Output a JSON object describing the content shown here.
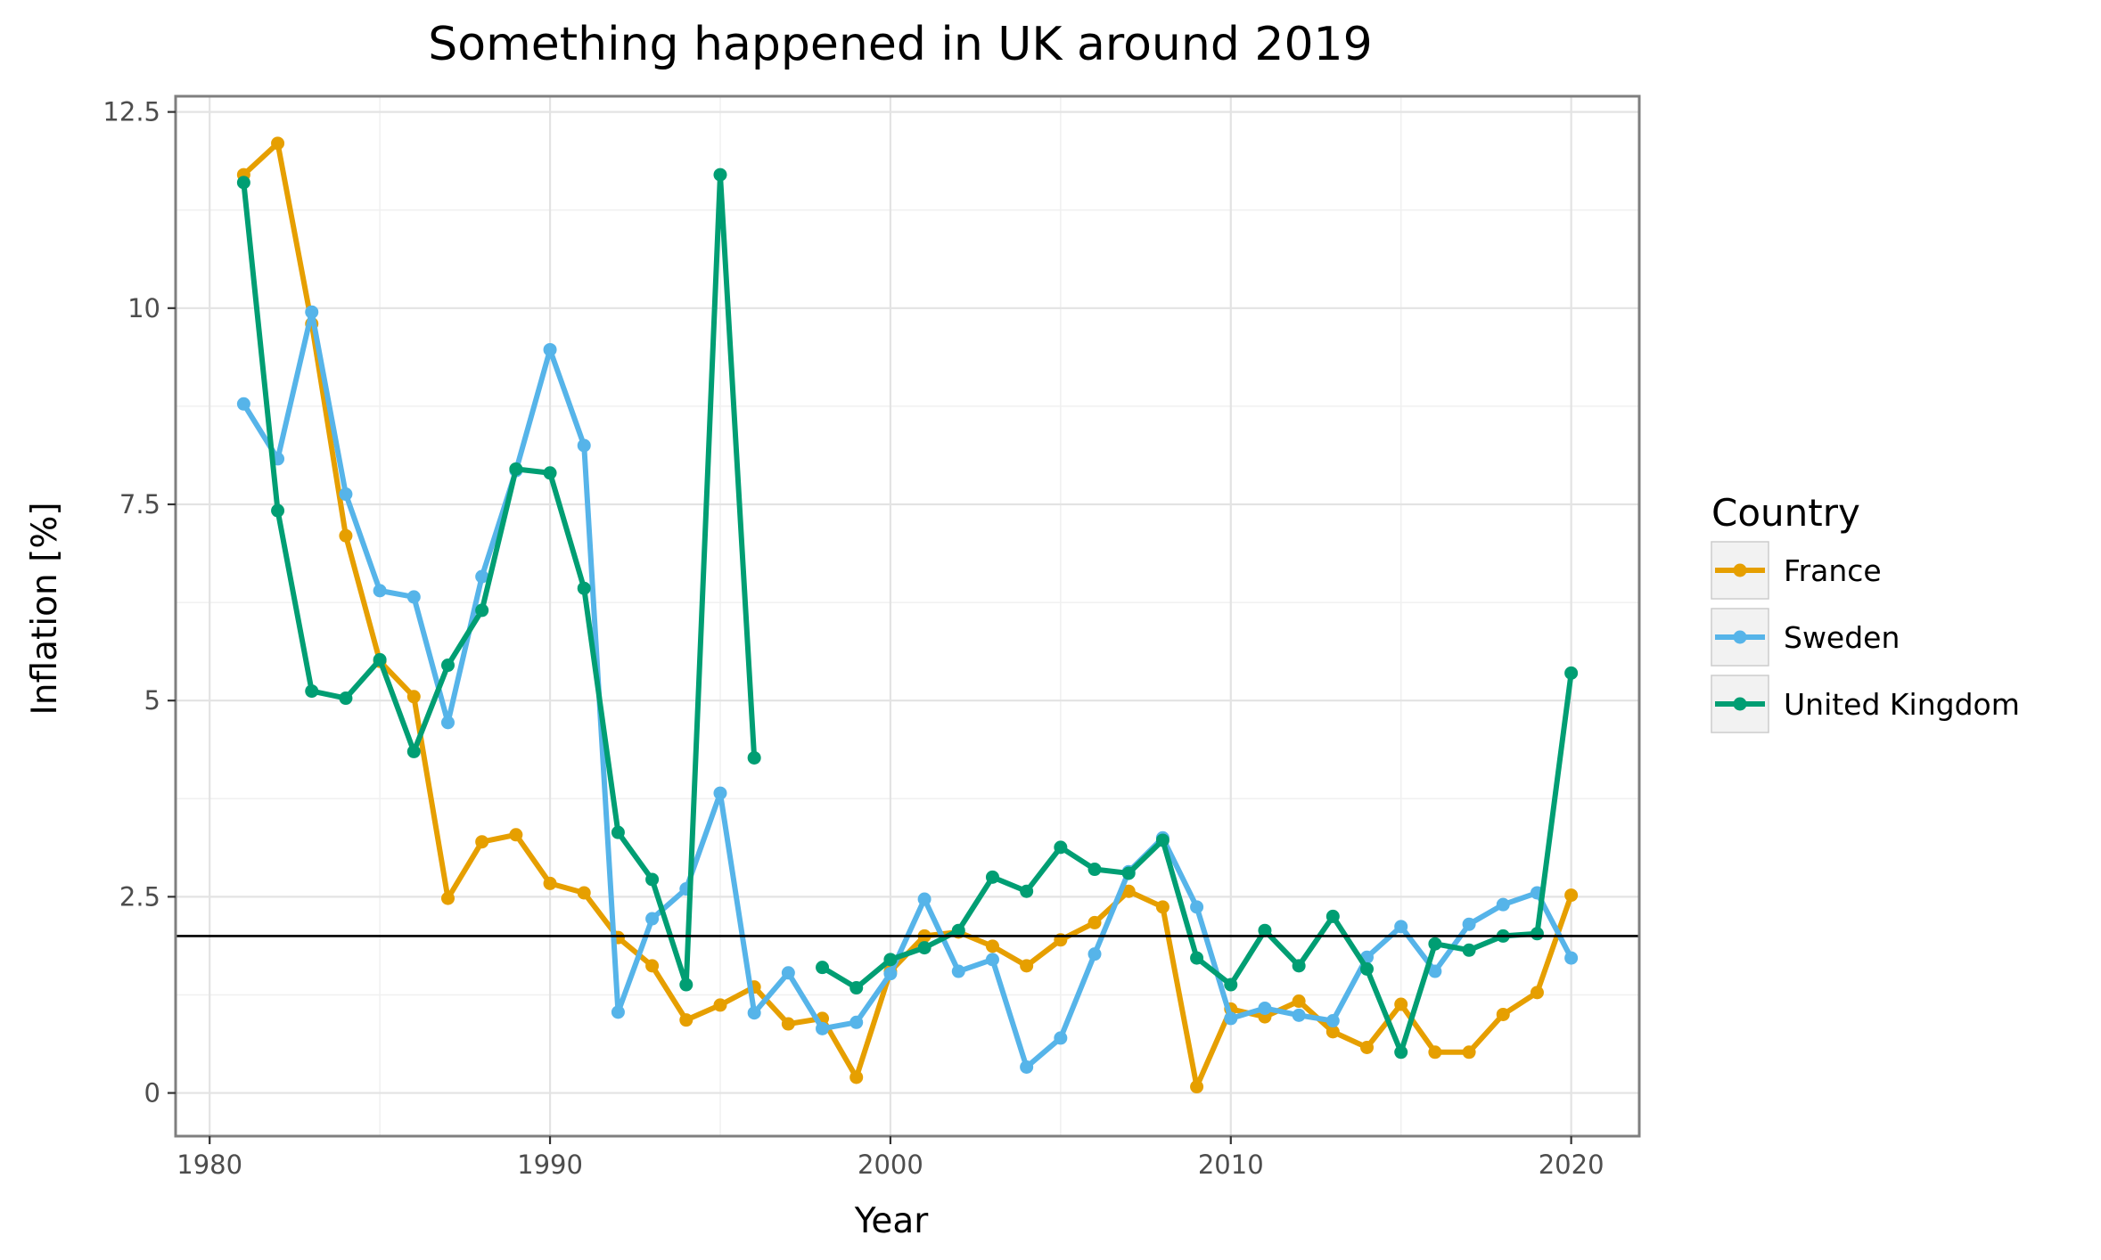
{
  "chart_data": {
    "type": "line",
    "title": "Something happened in UK around 2019",
    "xlabel": "Year",
    "ylabel": "Inflation [%]",
    "xlim": [
      1979,
      2022
    ],
    "ylim": [
      -0.55,
      12.7
    ],
    "x_ticks": [
      1980,
      1990,
      2000,
      2010,
      2020
    ],
    "y_ticks": [
      0,
      2.5,
      5,
      7.5,
      10,
      12.5
    ],
    "y_tick_labels": [
      "0",
      "2.5",
      "5",
      "7.5",
      "10",
      "12.5"
    ],
    "grid": true,
    "legend_title": "Country",
    "legend_position": "right",
    "reference_line": {
      "y": 2.0
    },
    "series": [
      {
        "name": "France",
        "color": "#E69F00",
        "points": [
          [
            1981,
            11.7
          ],
          [
            1982,
            12.1
          ],
          [
            1983,
            9.8
          ],
          [
            1984,
            7.1
          ],
          [
            1985,
            5.5
          ],
          [
            1986,
            5.05
          ],
          [
            1987,
            2.48
          ],
          [
            1988,
            3.2
          ],
          [
            1989,
            3.29
          ],
          [
            1990,
            2.67
          ],
          [
            1991,
            2.55
          ],
          [
            1992,
            1.98
          ],
          [
            1993,
            1.62
          ],
          [
            1994,
            0.93
          ],
          [
            1995,
            1.12
          ],
          [
            1996,
            1.35
          ],
          [
            1997,
            0.88
          ],
          [
            1998,
            0.95
          ],
          [
            1999,
            0.2
          ],
          [
            2000,
            1.55
          ],
          [
            2001,
            2.0
          ],
          [
            2002,
            2.05
          ],
          [
            2003,
            1.87
          ],
          [
            2004,
            1.62
          ],
          [
            2005,
            1.95
          ],
          [
            2006,
            2.17
          ],
          [
            2007,
            2.57
          ],
          [
            2008,
            2.37
          ],
          [
            2009,
            0.08
          ],
          [
            2010,
            1.07
          ],
          [
            2011,
            0.97
          ],
          [
            2012,
            1.17
          ],
          [
            2013,
            0.78
          ],
          [
            2014,
            0.58
          ],
          [
            2015,
            1.13
          ],
          [
            2016,
            0.52
          ],
          [
            2017,
            0.52
          ],
          [
            2018,
            1.0
          ],
          [
            2019,
            1.28
          ],
          [
            2020,
            2.52
          ]
        ]
      },
      {
        "name": "Sweden",
        "color": "#56B4E9",
        "points": [
          [
            1981,
            8.78
          ],
          [
            1982,
            8.08
          ],
          [
            1983,
            9.95
          ],
          [
            1984,
            7.63
          ],
          [
            1985,
            6.4
          ],
          [
            1986,
            6.32
          ],
          [
            1987,
            4.72
          ],
          [
            1988,
            6.58
          ],
          [
            1989,
            7.93
          ],
          [
            1990,
            9.47
          ],
          [
            1991,
            8.25
          ],
          [
            1992,
            1.03
          ],
          [
            1993,
            2.22
          ],
          [
            1994,
            2.6
          ],
          [
            1995,
            3.82
          ],
          [
            1996,
            1.02
          ],
          [
            1997,
            1.53
          ],
          [
            1998,
            0.82
          ],
          [
            1999,
            0.9
          ],
          [
            2000,
            1.52
          ],
          [
            2001,
            2.47
          ],
          [
            2002,
            1.55
          ],
          [
            2003,
            1.7
          ],
          [
            2004,
            0.33
          ],
          [
            2005,
            0.7
          ],
          [
            2006,
            1.77
          ],
          [
            2007,
            2.82
          ],
          [
            2008,
            3.25
          ],
          [
            2009,
            2.37
          ],
          [
            2010,
            0.95
          ],
          [
            2011,
            1.08
          ],
          [
            2012,
            0.99
          ],
          [
            2013,
            0.92
          ],
          [
            2014,
            1.73
          ],
          [
            2015,
            2.12
          ],
          [
            2016,
            1.55
          ],
          [
            2017,
            2.15
          ],
          [
            2018,
            2.4
          ],
          [
            2019,
            2.55
          ],
          [
            2020,
            1.72
          ]
        ]
      },
      {
        "name": "United Kingdom",
        "color": "#009E73",
        "points": [
          [
            1981,
            11.6
          ],
          [
            1982,
            7.42
          ],
          [
            1983,
            5.12
          ],
          [
            1984,
            5.03
          ],
          [
            1985,
            5.52
          ],
          [
            1986,
            4.35
          ],
          [
            1987,
            5.45
          ],
          [
            1988,
            6.15
          ],
          [
            1989,
            7.95
          ],
          [
            1990,
            7.9
          ],
          [
            1991,
            6.43
          ],
          [
            1992,
            3.32
          ],
          [
            1993,
            2.72
          ],
          [
            1994,
            1.38
          ],
          [
            1995,
            11.7
          ],
          [
            1996,
            4.27
          ],
          [
            1997,
            null
          ],
          [
            1998,
            1.6
          ],
          [
            1999,
            1.34
          ],
          [
            2000,
            1.7
          ],
          [
            2001,
            1.85
          ],
          [
            2002,
            2.07
          ],
          [
            2003,
            2.75
          ],
          [
            2004,
            2.57
          ],
          [
            2005,
            3.13
          ],
          [
            2006,
            2.85
          ],
          [
            2007,
            2.8
          ],
          [
            2008,
            3.22
          ],
          [
            2009,
            1.72
          ],
          [
            2010,
            1.38
          ],
          [
            2011,
            2.07
          ],
          [
            2012,
            1.62
          ],
          [
            2013,
            2.25
          ],
          [
            2014,
            1.58
          ],
          [
            2015,
            0.52
          ],
          [
            2016,
            1.9
          ],
          [
            2017,
            1.82
          ],
          [
            2018,
            2.0
          ],
          [
            2019,
            2.03
          ],
          [
            2020,
            5.35
          ]
        ]
      }
    ]
  }
}
